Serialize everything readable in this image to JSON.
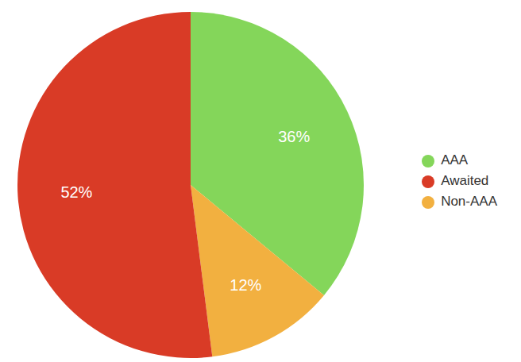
{
  "chart_data": {
    "type": "pie",
    "categories": [
      "AAA",
      "Non-AAA",
      "Awaited"
    ],
    "values": [
      36,
      12,
      52
    ],
    "value_labels": [
      "36%",
      "12%",
      "52%"
    ],
    "colors": [
      "#84d65a",
      "#f2b040",
      "#d93b26"
    ],
    "data_labels": true,
    "legend": "right"
  }
}
